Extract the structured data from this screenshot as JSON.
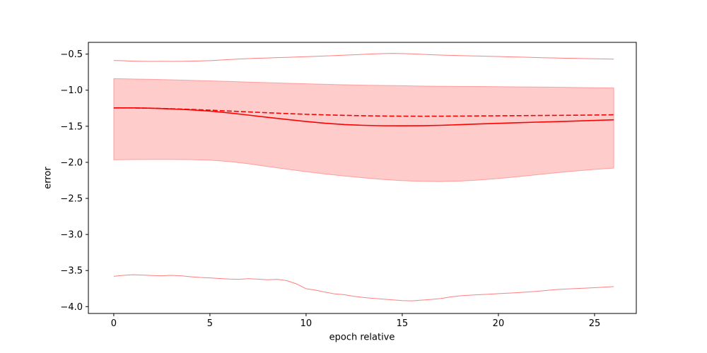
{
  "figure": {
    "background": "#ffffff"
  },
  "chart_data": {
    "type": "line",
    "title": "",
    "xlabel": "epoch relative",
    "ylabel": "error",
    "xlim": [
      -1.32,
      27.17
    ],
    "ylim": [
      -4.095,
      -0.337
    ],
    "grid": false,
    "legend": "none",
    "accent_color": "#ff0000",
    "x_ticks": [
      {
        "value": 0,
        "label": "0"
      },
      {
        "value": 5,
        "label": "5"
      },
      {
        "value": 10,
        "label": "10"
      },
      {
        "value": 15,
        "label": "15"
      },
      {
        "value": 20,
        "label": "20"
      },
      {
        "value": 25,
        "label": "25"
      }
    ],
    "y_ticks": [
      {
        "value": -0.5,
        "label": "−0.5"
      },
      {
        "value": -1.0,
        "label": "−1.0"
      },
      {
        "value": -1.5,
        "label": "−1.5"
      },
      {
        "value": -2.0,
        "label": "−2.0"
      },
      {
        "value": -2.5,
        "label": "−2.5"
      },
      {
        "value": -3.0,
        "label": "−3.0"
      },
      {
        "value": -3.5,
        "label": "−3.5"
      },
      {
        "value": -4.0,
        "label": "−4.0"
      }
    ],
    "band": {
      "name": "std-band",
      "color": "#ff0000",
      "fill_opacity": 0.2,
      "edge_opacity": 0.3,
      "x": [
        0,
        1,
        2,
        3,
        4,
        5,
        6,
        7,
        8,
        9,
        10,
        11,
        12,
        13,
        14,
        15,
        16,
        17,
        18,
        19,
        20,
        21,
        22,
        23,
        24,
        25,
        26
      ],
      "upper": [
        -0.84,
        -0.845,
        -0.85,
        -0.856,
        -0.863,
        -0.87,
        -0.878,
        -0.887,
        -0.895,
        -0.903,
        -0.911,
        -0.918,
        -0.924,
        -0.93,
        -0.934,
        -0.938,
        -0.942,
        -0.945,
        -0.947,
        -0.949,
        -0.951,
        -0.954,
        -0.956,
        -0.959,
        -0.962,
        -0.966,
        -0.97
      ],
      "lower": [
        -1.965,
        -1.962,
        -1.96,
        -1.96,
        -1.963,
        -1.97,
        -1.99,
        -2.02,
        -2.058,
        -2.095,
        -2.13,
        -2.162,
        -2.19,
        -2.215,
        -2.238,
        -2.254,
        -2.264,
        -2.267,
        -2.26,
        -2.245,
        -2.225,
        -2.2,
        -2.172,
        -2.145,
        -2.12,
        -2.098,
        -2.08
      ]
    },
    "series": [
      {
        "name": "mean-error",
        "style": "solid",
        "color": "#ff0000",
        "width": 1.6,
        "opacity": 1,
        "x": [
          0,
          1,
          2,
          3,
          4,
          5,
          6,
          7,
          8,
          9,
          10,
          11,
          12,
          13,
          14,
          15,
          16,
          17,
          18,
          19,
          20,
          21,
          22,
          23,
          24,
          25,
          26
        ],
        "values": [
          -1.245,
          -1.245,
          -1.25,
          -1.26,
          -1.272,
          -1.29,
          -1.315,
          -1.345,
          -1.376,
          -1.406,
          -1.434,
          -1.458,
          -1.476,
          -1.487,
          -1.493,
          -1.494,
          -1.492,
          -1.487,
          -1.478,
          -1.468,
          -1.459,
          -1.451,
          -1.443,
          -1.436,
          -1.428,
          -1.419,
          -1.41
        ]
      },
      {
        "name": "reference-mean-error",
        "style": "dashed",
        "color": "#ff0000",
        "width": 1.6,
        "opacity": 1,
        "x": [
          0,
          1,
          2,
          3,
          4,
          5,
          6,
          7,
          8,
          9,
          10,
          11,
          12,
          13,
          14,
          15,
          16,
          17,
          18,
          19,
          20,
          21,
          22,
          23,
          24,
          25,
          26
        ],
        "values": [
          -1.245,
          -1.246,
          -1.25,
          -1.257,
          -1.266,
          -1.277,
          -1.289,
          -1.301,
          -1.313,
          -1.324,
          -1.334,
          -1.342,
          -1.349,
          -1.354,
          -1.358,
          -1.36,
          -1.361,
          -1.36,
          -1.359,
          -1.357,
          -1.355,
          -1.353,
          -1.351,
          -1.349,
          -1.347,
          -1.344,
          -1.341
        ]
      },
      {
        "name": "max-envelope",
        "style": "solid",
        "color": "#ff0000",
        "width": 1.0,
        "opacity": 0.5,
        "x": [
          0,
          0.5,
          1,
          1.5,
          2,
          2.5,
          3,
          3.5,
          4,
          4.5,
          5,
          5.5,
          6,
          6.5,
          7,
          7.5,
          8,
          8.5,
          9,
          9.5,
          10,
          10.5,
          11,
          11.5,
          12,
          12.5,
          13,
          13.5,
          14,
          14.5,
          15,
          15.5,
          16,
          16.5,
          17,
          17.5,
          18,
          18.5,
          19,
          19.5,
          20,
          20.5,
          21,
          21.5,
          22,
          22.5,
          23,
          23.5,
          24,
          24.5,
          25,
          25.5,
          26
        ],
        "values": [
          -0.588,
          -0.592,
          -0.597,
          -0.6,
          -0.601,
          -0.6,
          -0.601,
          -0.6,
          -0.597,
          -0.594,
          -0.59,
          -0.583,
          -0.576,
          -0.568,
          -0.562,
          -0.557,
          -0.553,
          -0.549,
          -0.545,
          -0.54,
          -0.535,
          -0.53,
          -0.525,
          -0.52,
          -0.514,
          -0.509,
          -0.503,
          -0.497,
          -0.492,
          -0.49,
          -0.492,
          -0.496,
          -0.502,
          -0.508,
          -0.513,
          -0.517,
          -0.521,
          -0.524,
          -0.527,
          -0.53,
          -0.533,
          -0.537,
          -0.54,
          -0.544,
          -0.548,
          -0.551,
          -0.554,
          -0.557,
          -0.559,
          -0.562,
          -0.564,
          -0.567,
          -0.57
        ]
      },
      {
        "name": "min-envelope",
        "style": "solid",
        "color": "#ff0000",
        "width": 1.0,
        "opacity": 0.5,
        "x": [
          0,
          0.5,
          1,
          1.5,
          2,
          2.5,
          3,
          3.5,
          4,
          4.5,
          5,
          5.5,
          6,
          6.5,
          7,
          7.5,
          8,
          8.5,
          9,
          9.5,
          10,
          10.5,
          11,
          11.5,
          12,
          12.5,
          13,
          13.5,
          14,
          14.5,
          15,
          15.5,
          16,
          16.5,
          17,
          17.5,
          18,
          18.5,
          19,
          19.5,
          20,
          20.5,
          21,
          21.5,
          22,
          22.5,
          23,
          23.5,
          24,
          24.5,
          25,
          25.5,
          26
        ],
        "values": [
          -3.58,
          -3.566,
          -3.558,
          -3.563,
          -3.569,
          -3.573,
          -3.566,
          -3.573,
          -3.586,
          -3.596,
          -3.602,
          -3.61,
          -3.618,
          -3.622,
          -3.613,
          -3.619,
          -3.628,
          -3.621,
          -3.64,
          -3.685,
          -3.752,
          -3.772,
          -3.8,
          -3.824,
          -3.836,
          -3.858,
          -3.874,
          -3.886,
          -3.896,
          -3.906,
          -3.916,
          -3.92,
          -3.91,
          -3.9,
          -3.888,
          -3.866,
          -3.85,
          -3.842,
          -3.835,
          -3.828,
          -3.82,
          -3.814,
          -3.806,
          -3.798,
          -3.788,
          -3.776,
          -3.764,
          -3.756,
          -3.75,
          -3.744,
          -3.738,
          -3.73,
          -3.722
        ]
      }
    ]
  }
}
